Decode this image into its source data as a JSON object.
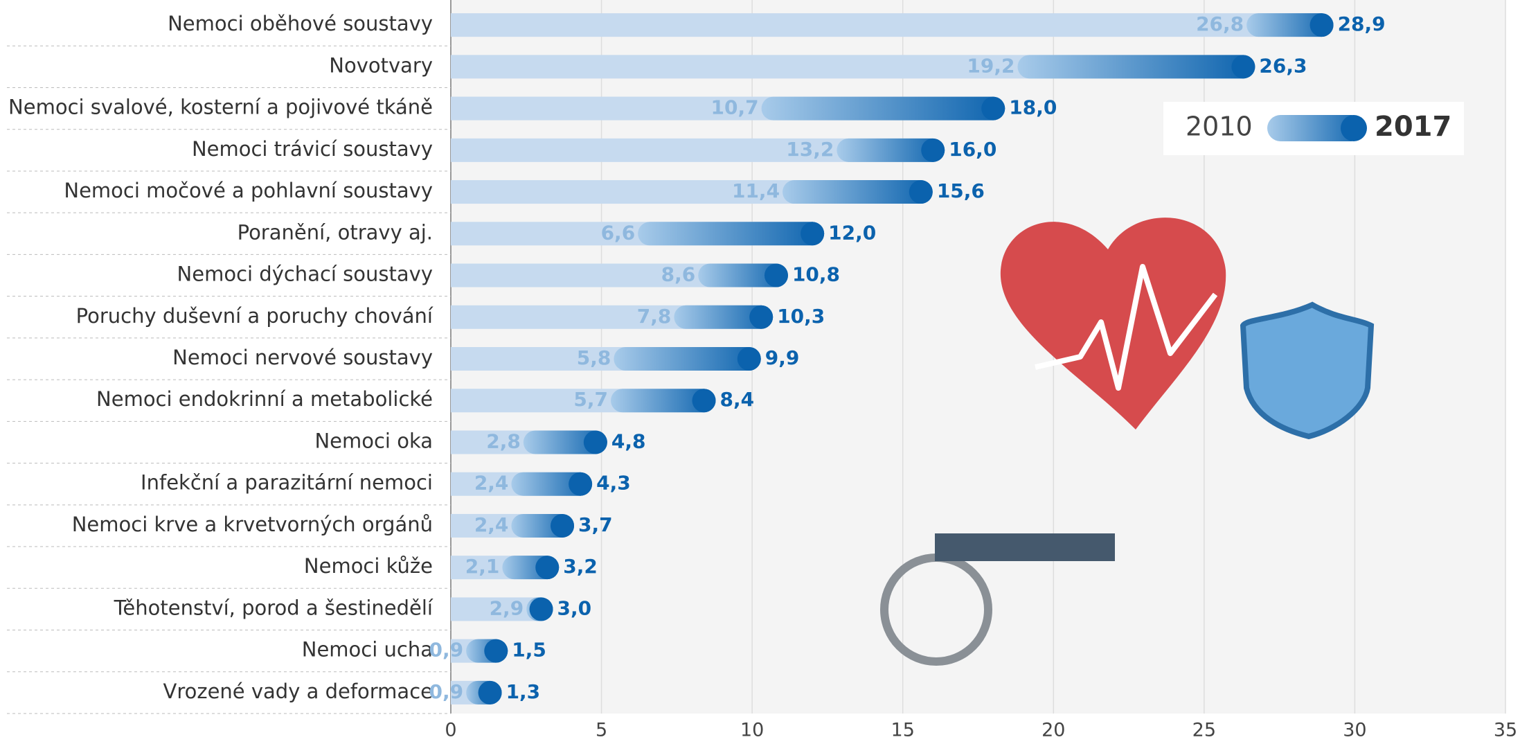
{
  "chart_data": {
    "type": "dumbbell-bar",
    "categories": [
      "Nemoci oběhové soustavy",
      "Novotvary",
      "Nemoci svalové, kosterní a pojivové tkáně",
      "Nemoci trávicí soustavy",
      "Nemoci močové a pohlavní soustavy",
      "Poranění, otravy aj.",
      "Nemoci dýchací soustavy",
      "Poruchy duševní a poruchy chování",
      "Nemoci nervové soustavy",
      "Nemoci endokrinní a metabolické",
      "Nemoci oka",
      "Infekční a parazitární nemoci",
      "Nemoci krve a krvetvorných orgánů",
      "Nemoci kůže",
      "Těhotenství, porod a šestinedělí",
      "Nemoci ucha",
      "Vrozené vady a deformace"
    ],
    "series": [
      {
        "name": "2010",
        "color": "#a8cbea",
        "values": [
          26.8,
          19.2,
          10.7,
          13.2,
          11.4,
          6.6,
          8.6,
          7.8,
          5.8,
          5.7,
          2.8,
          2.4,
          2.4,
          2.1,
          2.9,
          0.9,
          0.9
        ],
        "value_labels": [
          "26,8",
          "19,2",
          "10,7",
          "13,2",
          "11,4",
          "6,6",
          "8,6",
          "7,8",
          "5,8",
          "5,7",
          "2,8",
          "2,4",
          "2,4",
          "2,1",
          "2,9",
          "0,9",
          "0,9"
        ]
      },
      {
        "name": "2017",
        "color": "#0b62ad",
        "values": [
          28.9,
          26.3,
          18.0,
          16.0,
          15.6,
          12.0,
          10.8,
          10.3,
          9.9,
          8.4,
          4.8,
          4.3,
          3.7,
          3.2,
          3.0,
          1.5,
          1.3
        ],
        "value_labels": [
          "28,9",
          "26,3",
          "18,0",
          "16,0",
          "15,6",
          "12,0",
          "10,8",
          "10,3",
          "9,9",
          "8,4",
          "4,8",
          "4,3",
          "3,7",
          "3,2",
          "3,0",
          "1,5",
          "1,3"
        ]
      }
    ],
    "xlim": [
      0,
      35
    ],
    "xticks": [
      0,
      5,
      10,
      15,
      20,
      25,
      30,
      35
    ],
    "grid": true
  }
}
